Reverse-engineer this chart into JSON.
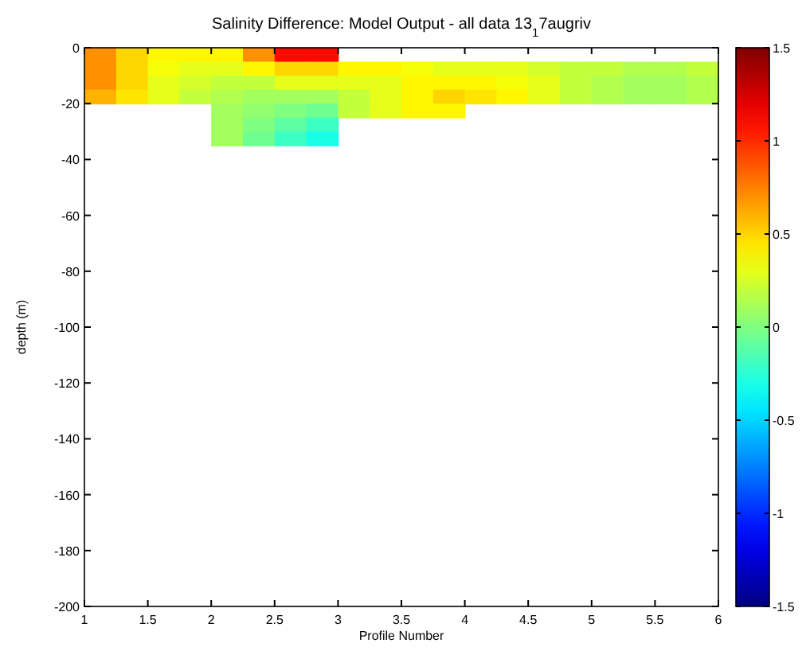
{
  "chart_data": {
    "type": "heatmap",
    "title": "Salinity Difference: Model Output - all data 13$_{1}$7augriv",
    "xlabel": "Profile Number",
    "ylabel": "depth (m)",
    "x": [
      1.125,
      1.375,
      1.625,
      1.875,
      2.125,
      2.375,
      2.625,
      2.875,
      3.125,
      3.375,
      3.625,
      3.875,
      4.125,
      4.375,
      4.625,
      4.875,
      5.125,
      5.375,
      5.625,
      5.875
    ],
    "y": [
      -2.5,
      -7.5,
      -12.5,
      -17.5,
      -22.5,
      -27.5,
      -32.5
    ],
    "cells": [
      [
        0.7,
        0.5,
        0.4,
        0.4,
        0.4,
        0.7,
        1.1,
        1.1,
        null,
        null,
        null,
        null,
        null,
        null,
        null,
        null,
        null,
        null,
        null,
        null
      ],
      [
        0.7,
        0.5,
        0.35,
        0.3,
        0.3,
        0.4,
        0.5,
        0.5,
        0.4,
        0.4,
        0.35,
        0.3,
        0.3,
        0.3,
        0.25,
        0.2,
        0.2,
        0.15,
        0.15,
        0.2
      ],
      [
        0.7,
        0.5,
        0.3,
        0.25,
        0.2,
        0.2,
        0.3,
        0.3,
        0.3,
        0.3,
        0.4,
        0.4,
        0.4,
        0.35,
        0.3,
        0.2,
        0.15,
        0.1,
        0.1,
        0.15
      ],
      [
        0.6,
        0.45,
        0.3,
        0.2,
        0.15,
        0.1,
        0.1,
        0.1,
        0.2,
        0.3,
        0.4,
        0.5,
        0.45,
        0.4,
        0.3,
        0.2,
        0.15,
        0.1,
        0.1,
        0.15
      ],
      [
        null,
        null,
        null,
        null,
        0.1,
        0.05,
        0,
        -0.05,
        0.2,
        0.3,
        0.4,
        0.4,
        null,
        null,
        null,
        null,
        null,
        null,
        null,
        null
      ],
      [
        null,
        null,
        null,
        null,
        0.1,
        0,
        -0.1,
        -0.2,
        null,
        null,
        null,
        null,
        null,
        null,
        null,
        null,
        null,
        null,
        null,
        null
      ],
      [
        null,
        null,
        null,
        null,
        0.1,
        -0.05,
        -0.2,
        -0.3,
        null,
        null,
        null,
        null,
        null,
        null,
        null,
        null,
        null,
        null,
        null,
        null
      ]
    ],
    "xlim": [
      1,
      6
    ],
    "xticks": [
      1,
      1.5,
      2,
      2.5,
      3,
      3.5,
      4,
      4.5,
      5,
      5.5,
      6
    ],
    "ylim": [
      -200,
      0
    ],
    "yticks": [
      0,
      -20,
      -40,
      -60,
      -80,
      -100,
      -120,
      -140,
      -160,
      -180,
      -200
    ],
    "clim": [
      -1.5,
      1.5
    ],
    "cticks": [
      1.5,
      1,
      0.5,
      0,
      -0.5,
      -1,
      -1.5
    ],
    "grid": false
  }
}
